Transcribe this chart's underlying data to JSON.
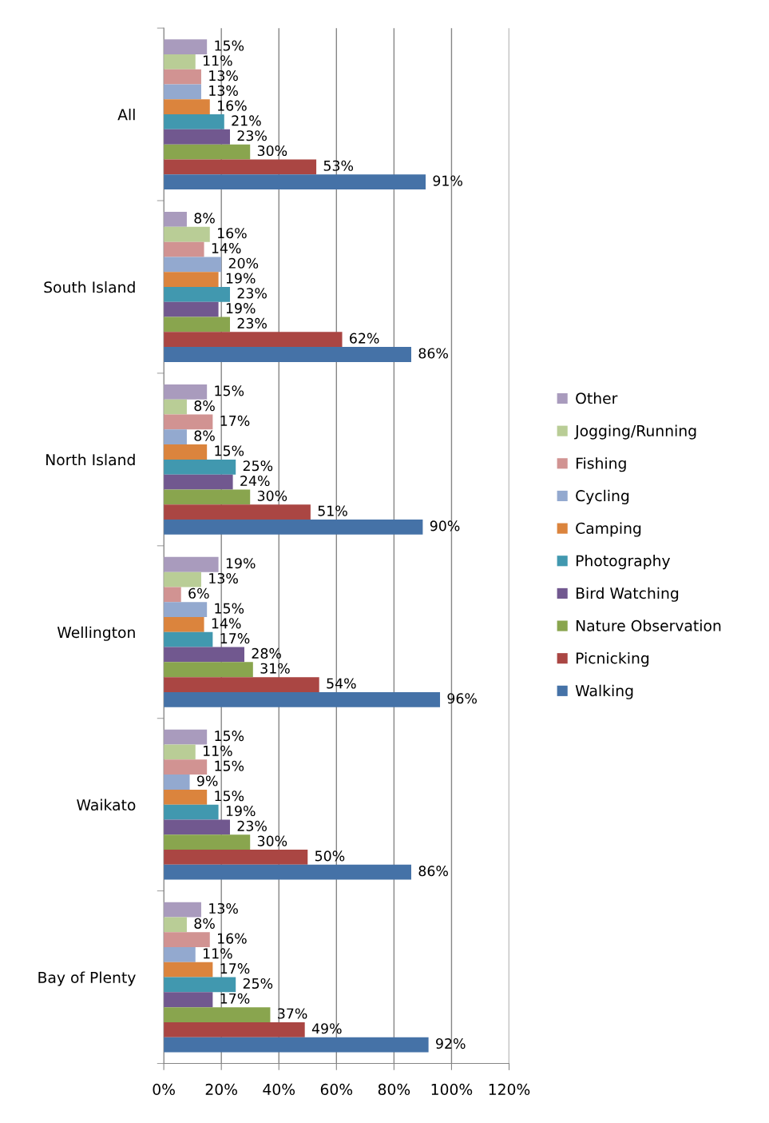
{
  "chart_data": {
    "type": "bar",
    "orientation": "horizontal",
    "categories": [
      "All",
      "South Island",
      "North Island",
      "Wellington",
      "Waikato",
      "Bay of Plenty"
    ],
    "series": [
      {
        "name": "Other",
        "color": "#a99bbd",
        "values": [
          15,
          8,
          15,
          19,
          15,
          13
        ],
        "value_labels": [
          "15%",
          "8%",
          "15%",
          "19%",
          "15%",
          "13%"
        ]
      },
      {
        "name": "Jogging/Running",
        "color": "#b9cd96",
        "values": [
          11,
          16,
          8,
          13,
          11,
          8
        ],
        "value_labels": [
          "11%",
          "16%",
          "8%",
          "13%",
          "11%",
          "8%"
        ]
      },
      {
        "name": "Fishing",
        "color": "#d19392",
        "values": [
          13,
          14,
          17,
          6,
          15,
          16
        ],
        "value_labels": [
          "13%",
          "14%",
          "17%",
          "6%",
          "15%",
          "16%"
        ]
      },
      {
        "name": "Cycling",
        "color": "#93a9cf",
        "values": [
          13,
          20,
          8,
          15,
          9,
          11
        ],
        "value_labels": [
          "13%",
          "20%",
          "8%",
          "15%",
          "9%",
          "11%"
        ]
      },
      {
        "name": "Camping",
        "color": "#db843d",
        "values": [
          16,
          19,
          15,
          14,
          15,
          17
        ],
        "value_labels": [
          "16%",
          "19%",
          "15%",
          "14%",
          "15%",
          "17%"
        ]
      },
      {
        "name": "Photography",
        "color": "#4198af",
        "values": [
          21,
          23,
          25,
          17,
          19,
          25
        ],
        "value_labels": [
          "21%",
          "23%",
          "25%",
          "17%",
          "19%",
          "25%"
        ]
      },
      {
        "name": "Bird Watching",
        "color": "#71588f",
        "values": [
          23,
          19,
          24,
          28,
          23,
          17
        ],
        "value_labels": [
          "23%",
          "19%",
          "24%",
          "28%",
          "23%",
          "17%"
        ]
      },
      {
        "name": "Nature Observation",
        "color": "#89a54e",
        "values": [
          30,
          23,
          30,
          31,
          30,
          37
        ],
        "value_labels": [
          "30%",
          "23%",
          "30%",
          "31%",
          "30%",
          "37%"
        ]
      },
      {
        "name": "Picnicking",
        "color": "#aa4643",
        "values": [
          53,
          62,
          51,
          54,
          50,
          49
        ],
        "value_labels": [
          "53%",
          "62%",
          "51%",
          "54%",
          "50%",
          "49%"
        ]
      },
      {
        "name": "Walking",
        "color": "#4572a7",
        "values": [
          91,
          86,
          90,
          96,
          86,
          92
        ],
        "value_labels": [
          "91%",
          "86%",
          "90%",
          "96%",
          "86%",
          "92%"
        ]
      }
    ],
    "xlim": [
      0,
      120
    ],
    "xticks": [
      {
        "value": 0,
        "label": "0%"
      },
      {
        "value": 20,
        "label": "20%"
      },
      {
        "value": 40,
        "label": "40%"
      },
      {
        "value": 60,
        "label": "60%"
      },
      {
        "value": 80,
        "label": "80%"
      },
      {
        "value": 100,
        "label": "100%"
      },
      {
        "value": 120,
        "label": "120%"
      }
    ],
    "grid": "x",
    "legend": "right"
  }
}
